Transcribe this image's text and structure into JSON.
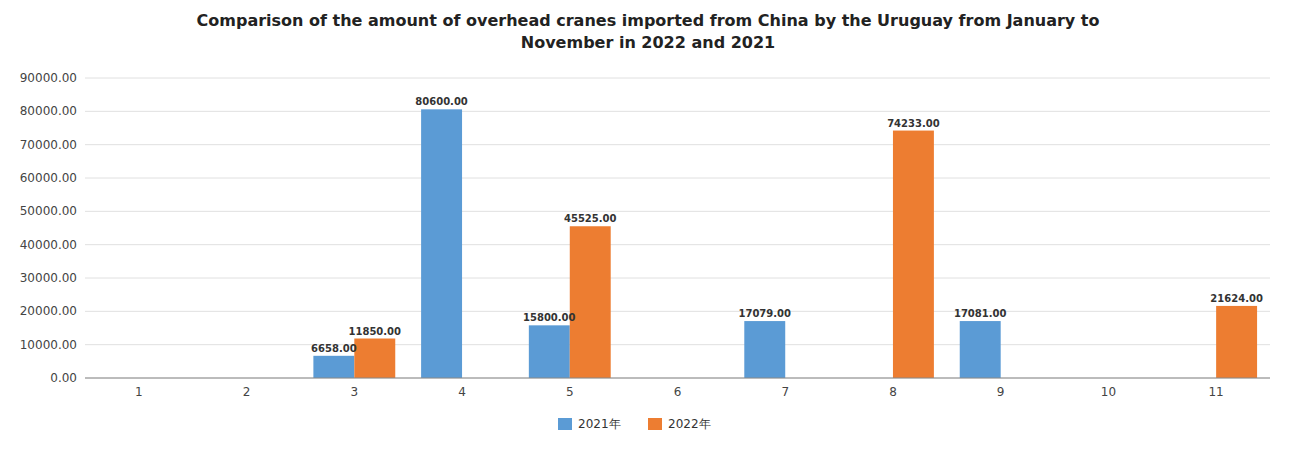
{
  "chart_data": {
    "type": "bar",
    "title": "Comparison of the amount of overhead cranes imported from China by the Uruguay from January to\nNovember in 2022 and 2021",
    "categories": [
      "1",
      "2",
      "3",
      "4",
      "5",
      "6",
      "7",
      "8",
      "9",
      "10",
      "11"
    ],
    "series": [
      {
        "name": "2021年",
        "color": "#5B9BD5",
        "values": [
          0,
          0,
          6658,
          80600,
          15800,
          0,
          17079,
          0,
          17081,
          0,
          0
        ],
        "value_labels": [
          null,
          null,
          "6658.00",
          "80600.00",
          "15800.00",
          null,
          "17079.00",
          null,
          "17081.00",
          null,
          null
        ]
      },
      {
        "name": "2022年",
        "color": "#ED7D31",
        "values": [
          0,
          0,
          11850,
          0,
          45525,
          0,
          0,
          74233,
          0,
          0,
          21624
        ],
        "value_labels": [
          null,
          null,
          "11850.00",
          null,
          "45525.00",
          null,
          null,
          "74233.00",
          null,
          null,
          "21624.00"
        ]
      }
    ],
    "ylim": [
      0,
      90000
    ],
    "yticks": [
      {
        "value": 0,
        "label": "0.00"
      },
      {
        "value": 10000,
        "label": "10000.00"
      },
      {
        "value": 20000,
        "label": "20000.00"
      },
      {
        "value": 30000,
        "label": "30000.00"
      },
      {
        "value": 40000,
        "label": "40000.00"
      },
      {
        "value": 50000,
        "label": "50000.00"
      },
      {
        "value": 60000,
        "label": "60000.00"
      },
      {
        "value": 70000,
        "label": "70000.00"
      },
      {
        "value": 80000,
        "label": "80000.00"
      },
      {
        "value": 90000,
        "label": "90000.00"
      }
    ],
    "grid": true,
    "legend": "bottom",
    "data_labels": true
  }
}
